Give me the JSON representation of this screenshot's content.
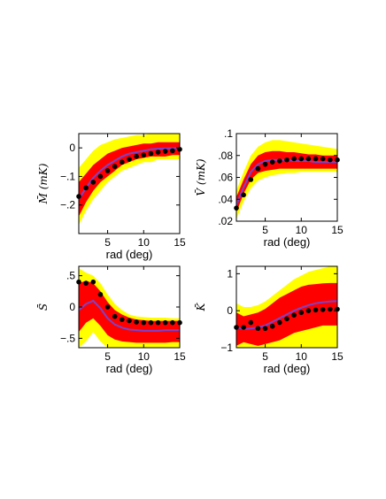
{
  "chart_data": [
    {
      "type": "area",
      "xlabel": "rad (deg)",
      "ylabel": "M̄ (mK)",
      "xlim": [
        1,
        15
      ],
      "ylim": [
        -0.3,
        0.05
      ],
      "xticks": [
        5,
        10,
        15
      ],
      "yticks": [
        0,
        -0.1,
        -0.2
      ],
      "x": [
        1,
        2,
        3,
        4,
        5,
        6,
        7,
        8,
        9,
        10,
        11,
        12,
        13,
        14,
        15
      ],
      "series": [
        {
          "role": "outer_band",
          "color": "#ffff00",
          "lower": [
            -0.27,
            -0.22,
            -0.18,
            -0.15,
            -0.12,
            -0.1,
            -0.08,
            -0.07,
            -0.06,
            -0.05,
            -0.05,
            -0.04,
            -0.04,
            -0.04,
            -0.04
          ],
          "upper": [
            -0.07,
            -0.04,
            -0.01,
            0.01,
            0.02,
            0.03,
            0.035,
            0.04,
            0.045,
            0.045,
            0.05,
            0.05,
            0.05,
            0.05,
            0.05
          ]
        },
        {
          "role": "inner_band",
          "color": "#ff0000",
          "lower": [
            -0.24,
            -0.19,
            -0.15,
            -0.12,
            -0.1,
            -0.08,
            -0.06,
            -0.05,
            -0.04,
            -0.035,
            -0.03,
            -0.03,
            -0.03,
            -0.025,
            -0.025
          ],
          "upper": [
            -0.12,
            -0.09,
            -0.06,
            -0.04,
            -0.02,
            -0.01,
            0.0,
            0.005,
            0.01,
            0.015,
            0.015,
            0.02,
            0.02,
            0.02,
            0.02
          ]
        },
        {
          "role": "mean",
          "color": "#7744cc",
          "values": [
            -0.18,
            -0.14,
            -0.105,
            -0.08,
            -0.06,
            -0.045,
            -0.03,
            -0.02,
            -0.015,
            -0.01,
            -0.005,
            -0.003,
            -0.002,
            -0.001,
            0.0
          ]
        },
        {
          "role": "observed",
          "color": "#000000",
          "values": [
            -0.17,
            -0.14,
            -0.12,
            -0.1,
            -0.08,
            -0.065,
            -0.05,
            -0.04,
            -0.03,
            -0.025,
            -0.02,
            -0.015,
            -0.012,
            -0.01,
            -0.005
          ]
        }
      ]
    },
    {
      "type": "area",
      "xlabel": "rad (deg)",
      "ylabel": "V̄ (mK)",
      "xlim": [
        1,
        15
      ],
      "ylim": [
        0.02,
        0.1
      ],
      "xticks": [
        5,
        10,
        15
      ],
      "yticks": [
        0.02,
        0.04,
        0.06,
        0.08,
        0.1
      ],
      "x": [
        1,
        2,
        3,
        4,
        5,
        6,
        7,
        8,
        9,
        10,
        11,
        12,
        13,
        14,
        15
      ],
      "series": [
        {
          "role": "outer_band",
          "color": "#ffff00",
          "lower": [
            0.022,
            0.038,
            0.05,
            0.057,
            0.06,
            0.062,
            0.063,
            0.064,
            0.064,
            0.065,
            0.065,
            0.065,
            0.065,
            0.065,
            0.065
          ],
          "upper": [
            0.048,
            0.065,
            0.08,
            0.088,
            0.092,
            0.094,
            0.094,
            0.093,
            0.092,
            0.091,
            0.09,
            0.089,
            0.088,
            0.087,
            0.086
          ]
        },
        {
          "role": "inner_band",
          "color": "#ff0000",
          "lower": [
            0.028,
            0.045,
            0.058,
            0.064,
            0.066,
            0.067,
            0.068,
            0.068,
            0.068,
            0.068,
            0.068,
            0.068,
            0.068,
            0.068,
            0.068
          ],
          "upper": [
            0.042,
            0.058,
            0.072,
            0.08,
            0.083,
            0.084,
            0.084,
            0.083,
            0.083,
            0.082,
            0.081,
            0.081,
            0.08,
            0.08,
            0.08
          ]
        },
        {
          "role": "mean",
          "color": "#7744cc",
          "values": [
            0.035,
            0.051,
            0.065,
            0.072,
            0.075,
            0.076,
            0.076,
            0.076,
            0.075,
            0.075,
            0.075,
            0.074,
            0.074,
            0.074,
            0.074
          ]
        },
        {
          "role": "observed",
          "color": "#000000",
          "values": [
            0.032,
            0.044,
            0.058,
            0.068,
            0.072,
            0.074,
            0.075,
            0.076,
            0.077,
            0.077,
            0.077,
            0.077,
            0.077,
            0.076,
            0.076
          ]
        }
      ]
    },
    {
      "type": "area",
      "xlabel": "rad (deg)",
      "ylabel": "S̄",
      "xlim": [
        1,
        15
      ],
      "ylim": [
        -0.65,
        0.65
      ],
      "xticks": [
        5,
        10,
        15
      ],
      "yticks": [
        0.5,
        0,
        -0.5
      ],
      "x": [
        1,
        2,
        3,
        4,
        5,
        6,
        7,
        8,
        9,
        10,
        11,
        12,
        13,
        14,
        15
      ],
      "series": [
        {
          "role": "outer_band",
          "color": "#ffff00",
          "lower": [
            -0.65,
            -0.55,
            -0.4,
            -0.55,
            -0.65,
            -0.65,
            -0.65,
            -0.65,
            -0.65,
            -0.65,
            -0.65,
            -0.65,
            -0.65,
            -0.65,
            -0.65
          ],
          "upper": [
            0.62,
            0.55,
            0.5,
            0.38,
            0.2,
            0.05,
            -0.05,
            -0.12,
            -0.15,
            -0.16,
            -0.17,
            -0.17,
            -0.17,
            -0.18,
            -0.18
          ]
        },
        {
          "role": "inner_band",
          "color": "#ff0000",
          "lower": [
            -0.4,
            -0.25,
            -0.18,
            -0.3,
            -0.45,
            -0.52,
            -0.55,
            -0.56,
            -0.57,
            -0.57,
            -0.57,
            -0.57,
            -0.57,
            -0.56,
            -0.56
          ],
          "upper": [
            0.38,
            0.42,
            0.38,
            0.25,
            0.08,
            -0.05,
            -0.12,
            -0.17,
            -0.2,
            -0.21,
            -0.22,
            -0.22,
            -0.22,
            -0.22,
            -0.22
          ]
        },
        {
          "role": "mean",
          "color": "#7744cc",
          "values": [
            -0.05,
            0.05,
            0.1,
            -0.02,
            -0.18,
            -0.28,
            -0.33,
            -0.36,
            -0.37,
            -0.38,
            -0.38,
            -0.38,
            -0.37,
            -0.37,
            -0.37
          ]
        },
        {
          "role": "observed",
          "color": "#000000",
          "values": [
            0.4,
            0.38,
            0.4,
            0.2,
            0.0,
            -0.15,
            -0.2,
            -0.22,
            -0.24,
            -0.25,
            -0.25,
            -0.25,
            -0.25,
            -0.25,
            -0.25
          ]
        }
      ]
    },
    {
      "type": "area",
      "xlabel": "rad (deg)",
      "ylabel": "K̄",
      "xlim": [
        1,
        15
      ],
      "ylim": [
        -1,
        1.2
      ],
      "xticks": [
        5,
        10,
        15
      ],
      "yticks": [
        1,
        0,
        -1
      ],
      "x": [
        1,
        2,
        3,
        4,
        5,
        6,
        7,
        8,
        9,
        10,
        11,
        12,
        13,
        14,
        15
      ],
      "series": [
        {
          "role": "outer_band",
          "color": "#ffff00",
          "lower": [
            -1.0,
            -1.0,
            -1.0,
            -1.0,
            -1.0,
            -1.0,
            -1.0,
            -1.0,
            -1.0,
            -1.0,
            -1.0,
            -1.0,
            -1.0,
            -1.0,
            -1.0
          ],
          "upper": [
            0.2,
            0.1,
            0.1,
            0.15,
            0.25,
            0.4,
            0.55,
            0.7,
            0.85,
            0.95,
            1.05,
            1.1,
            1.15,
            1.2,
            1.2
          ]
        },
        {
          "role": "inner_band",
          "color": "#ff0000",
          "lower": [
            -0.95,
            -0.85,
            -0.9,
            -0.95,
            -0.9,
            -0.85,
            -0.8,
            -0.7,
            -0.6,
            -0.55,
            -0.5,
            -0.45,
            -0.4,
            -0.4,
            -0.4
          ],
          "upper": [
            -0.05,
            -0.15,
            -0.1,
            -0.05,
            0.05,
            0.2,
            0.35,
            0.45,
            0.55,
            0.65,
            0.7,
            0.72,
            0.74,
            0.75,
            0.75
          ]
        },
        {
          "role": "mean",
          "color": "#7744cc",
          "values": [
            -0.45,
            -0.5,
            -0.48,
            -0.45,
            -0.4,
            -0.3,
            -0.2,
            -0.1,
            0.0,
            0.08,
            0.15,
            0.2,
            0.23,
            0.25,
            0.26
          ]
        },
        {
          "role": "observed",
          "color": "#000000",
          "values": [
            -0.45,
            -0.45,
            -0.32,
            -0.48,
            -0.48,
            -0.42,
            -0.32,
            -0.22,
            -0.12,
            -0.05,
            0.0,
            0.02,
            0.03,
            0.04,
            0.04
          ]
        }
      ]
    }
  ]
}
